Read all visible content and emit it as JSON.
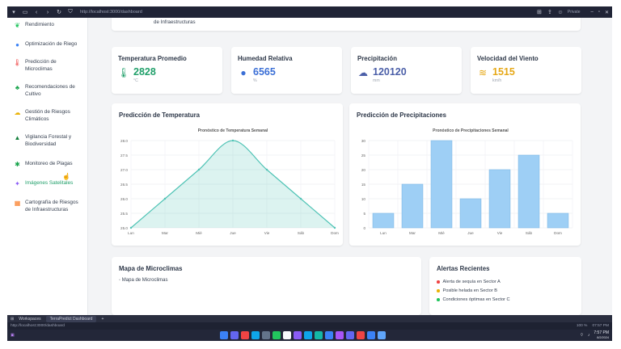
{
  "browser": {
    "url": "http://localhost:3000/dashboard",
    "profile": "Private"
  },
  "sidebar": {
    "items": [
      {
        "label": "Rendimiento",
        "icon": "leaf-icon",
        "color": "#22c55e"
      },
      {
        "label": "Optimización de Riego",
        "icon": "water-drop-icon",
        "color": "#3b82f6"
      },
      {
        "label": "Predicción de Microclimas",
        "icon": "thermometer-icon",
        "color": "#ef4444"
      },
      {
        "label": "Recomendaciones de Cultivo",
        "icon": "seedling-icon",
        "color": "#16a34a"
      },
      {
        "label": "Gestión de Riesgos Climáticos",
        "icon": "cloud-warning-icon",
        "color": "#eab308"
      },
      {
        "label": "Vigilancia Forestal y Biodiversidad",
        "icon": "tree-icon",
        "color": "#15803d"
      },
      {
        "label": "Monitoreo de Plagas",
        "icon": "bug-icon",
        "color": "#16a34a"
      },
      {
        "label": "Imágenes Satelitales",
        "icon": "satellite-icon",
        "color": "#8b5cf6"
      },
      {
        "label": "Cartografía de Riesgos de Infraestructuras",
        "icon": "buildings-icon",
        "color": "#f97316"
      }
    ]
  },
  "top_card": {
    "text": "de Infraestructuras"
  },
  "stats": [
    {
      "title": "Temperatura Promedio",
      "value": "2828",
      "unit": "°C",
      "icon": "thermometer-icon",
      "color": "#22a06b"
    },
    {
      "title": "Humedad Relativa",
      "value": "6565",
      "unit": "%",
      "icon": "water-drop-icon",
      "color": "#3b6fd6"
    },
    {
      "title": "Precipitación",
      "value": "120120",
      "unit": "mm",
      "icon": "rain-cloud-icon",
      "color": "#4b5fa8"
    },
    {
      "title": "Velocidad del Viento",
      "value": "1515",
      "unit": "km/h",
      "icon": "wind-icon",
      "color": "#e6a817"
    }
  ],
  "temp_chart_title": "Predicción de Temperatura",
  "precip_chart_title": "Predicción de Precipitaciones",
  "chart_data": [
    {
      "type": "area",
      "title": "Pronóstico de Temperatura Semanal",
      "categories": [
        "Lun",
        "Mar",
        "Mié",
        "Jue",
        "Vie",
        "Sáb",
        "Dom"
      ],
      "values": [
        25.0,
        26.0,
        27.0,
        28.0,
        27.0,
        26.0,
        25.0
      ],
      "ylim": [
        25.0,
        28.0
      ],
      "yticks": [
        "28.0",
        "27.5",
        "27.0",
        "26.5",
        "26.0",
        "25.5",
        "25.0"
      ],
      "color": "#4fc3b5",
      "grid": true
    },
    {
      "type": "bar",
      "title": "Pronóstico de Precipitaciones Semanal",
      "categories": [
        "Lun",
        "Mar",
        "Mié",
        "Jue",
        "Vie",
        "Sáb",
        "Dom"
      ],
      "values": [
        5,
        15,
        30,
        10,
        20,
        25,
        5
      ],
      "ylim": [
        0,
        30
      ],
      "yticks": [
        "30",
        "25",
        "20",
        "15",
        "10",
        "5",
        "0"
      ],
      "color": "#9ecff5",
      "grid": true
    }
  ],
  "map": {
    "title": "Mapa de Microclimas",
    "img_alt": "Mapa de Microclimas"
  },
  "alerts": {
    "title": "Alertas Recientes",
    "items": [
      {
        "text": "Alerta de sequía en Sector A",
        "color": "#ef4444"
      },
      {
        "text": "Posible helada en Sector B",
        "color": "#eab308"
      },
      {
        "text": "Condiciones óptimas en Sector C",
        "color": "#22c55e"
      }
    ]
  },
  "tabs": {
    "workspace": "Workspaces",
    "active_tab": "TerraPredict Dashboard"
  },
  "status": {
    "url": "http://localhost:3000/dashboard",
    "zoom": "100 %",
    "clock": "07:57 PM"
  },
  "taskbar": {
    "time": "7:57 PM",
    "date": "8/2/2024"
  }
}
